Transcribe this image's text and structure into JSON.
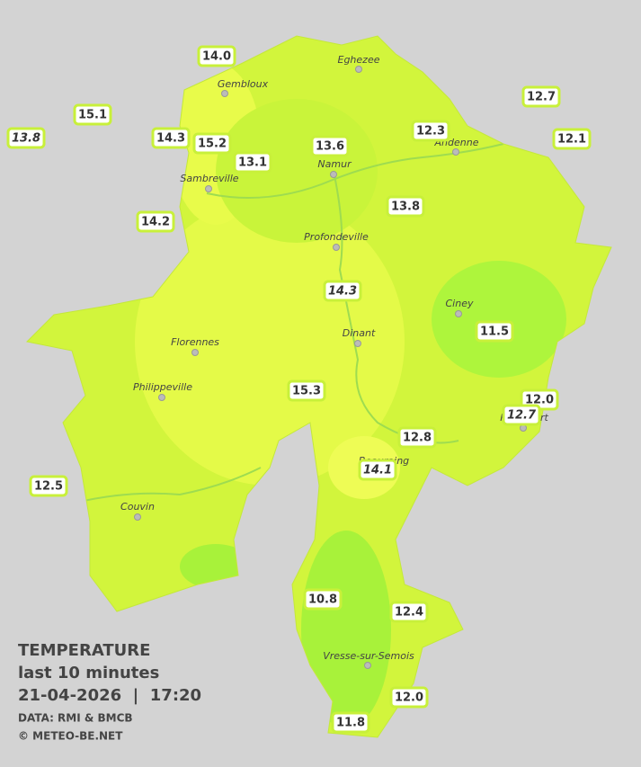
{
  "towns": [
    {
      "label": "Eghezee"
    },
    {
      "label": "Gembloux"
    },
    {
      "label": "Andenne"
    },
    {
      "label": "Namur"
    },
    {
      "label": "Sambreville"
    },
    {
      "label": "Profondeville"
    },
    {
      "label": "Ciney"
    },
    {
      "label": "Dinant"
    },
    {
      "label": "Florennes"
    },
    {
      "label": "Philippeville"
    },
    {
      "label": "Rochefort"
    },
    {
      "label": "Beauraing"
    },
    {
      "label": "Couvin"
    },
    {
      "label": "Vresse-sur-Semois"
    }
  ],
  "stations": [
    {
      "label": "14.0",
      "italic": false
    },
    {
      "label": "15.1",
      "italic": false
    },
    {
      "label": "13.8",
      "italic": true
    },
    {
      "label": "14.3",
      "italic": false
    },
    {
      "label": "15.2",
      "italic": false
    },
    {
      "label": "13.1",
      "italic": false
    },
    {
      "label": "13.6",
      "italic": false
    },
    {
      "label": "12.3",
      "italic": false
    },
    {
      "label": "12.7",
      "italic": false
    },
    {
      "label": "12.1",
      "italic": false
    },
    {
      "label": "14.2",
      "italic": false
    },
    {
      "label": "13.8",
      "italic": false
    },
    {
      "label": "14.3",
      "italic": true
    },
    {
      "label": "11.5",
      "italic": false
    },
    {
      "label": "15.3",
      "italic": false
    },
    {
      "label": "12.0",
      "italic": false
    },
    {
      "label": "12.7",
      "italic": true
    },
    {
      "label": "12.8",
      "italic": false
    },
    {
      "label": "14.1",
      "italic": true
    },
    {
      "label": "12.5",
      "italic": false
    },
    {
      "label": "10.8",
      "italic": false
    },
    {
      "label": "12.4",
      "italic": false
    },
    {
      "label": "12.0",
      "italic": false
    },
    {
      "label": "11.8",
      "italic": false
    }
  ],
  "legend": {
    "title": "TEMPERATURE",
    "subtitle": "last 10 minutes",
    "datetime": "21-04-2026  |  17:20",
    "source": "DATA: RMI & BMCB",
    "copyright": "© METEO-BE.NET"
  }
}
